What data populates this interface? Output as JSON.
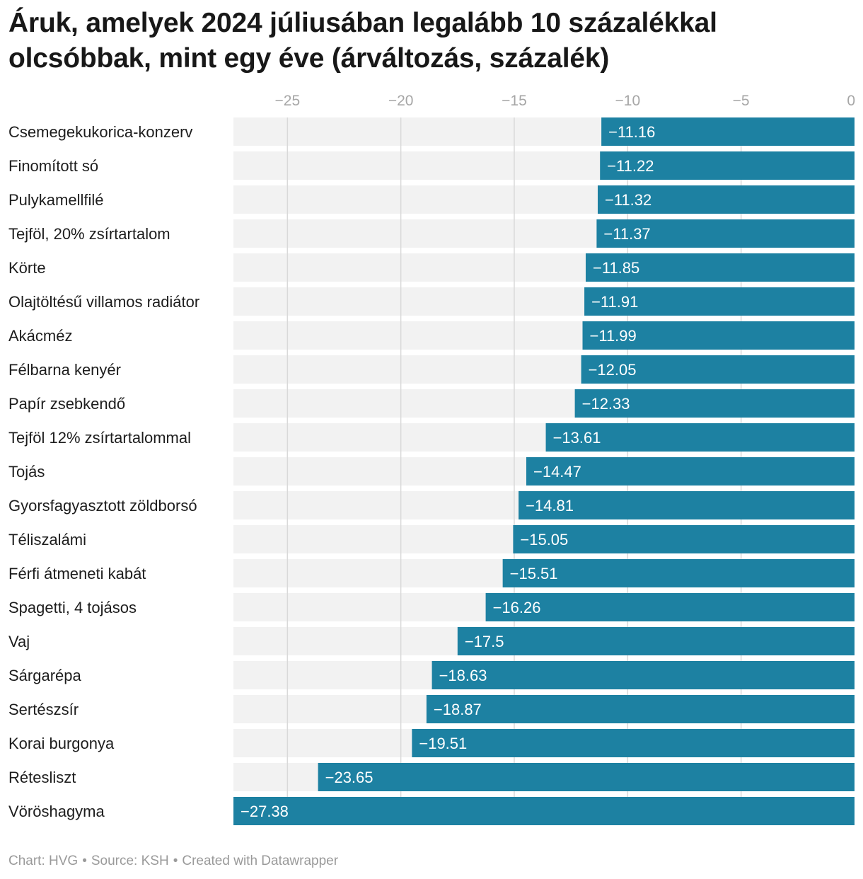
{
  "title": "Áruk, amelyek 2024 júliusában legalább 10 százalékkal olcsóbbak, mint egy éve (árváltozás, százalék)",
  "colors": {
    "bar": "#1d81a2",
    "track": "#f2f2f2",
    "grid": "#d9d9d9",
    "axis_text": "#a6a6a6",
    "label_text": "#1d1d1d",
    "value_text": "#ffffff"
  },
  "chart_data": {
    "type": "bar",
    "orientation": "horizontal",
    "title": "Áruk, amelyek 2024 júliusában legalább 10 százalékkal olcsóbbak, mint egy éve (árváltozás, százalék)",
    "xlabel": "",
    "ylabel": "",
    "xlim": [
      -27.38,
      0
    ],
    "ticks": [
      -25,
      -20,
      -15,
      -10,
      -5,
      0
    ],
    "tick_labels": [
      "−25",
      "−20",
      "−15",
      "−10",
      "−5",
      "0"
    ],
    "grid": true,
    "categories": [
      "Csemegekukorica-konzerv",
      "Finomított só",
      "Pulykamellfilé",
      "Tejföl, 20% zsírtartalom",
      "Körte",
      "Olajtöltésű villamos radiátor",
      "Akácméz",
      "Félbarna kenyér",
      "Papír zsebkendő",
      "Tejföl 12% zsírtartalommal",
      "Tojás",
      "Gyorsfagyasztott zöldborsó",
      "Téliszalámi",
      "Férfi átmeneti kabát",
      "Spagetti, 4 tojásos",
      "Vaj",
      "Sárgarépa",
      "Sertészsír",
      "Korai burgonya",
      "Rétesliszt",
      "Vöröshagyma"
    ],
    "values": [
      -11.16,
      -11.22,
      -11.32,
      -11.37,
      -11.85,
      -11.91,
      -11.99,
      -12.05,
      -12.33,
      -13.61,
      -14.47,
      -14.81,
      -15.05,
      -15.51,
      -16.26,
      -17.5,
      -18.63,
      -18.87,
      -19.51,
      -23.65,
      -27.38
    ],
    "value_labels": [
      "−11.16",
      "−11.22",
      "−11.32",
      "−11.37",
      "−11.85",
      "−11.91",
      "−11.99",
      "−12.05",
      "−12.33",
      "−13.61",
      "−14.47",
      "−14.81",
      "−15.05",
      "−15.51",
      "−16.26",
      "−17.5",
      "−18.63",
      "−18.87",
      "−19.51",
      "−23.65",
      "−27.38"
    ]
  },
  "footer": {
    "chart_credit": "Chart: HVG",
    "source": "Source: KSH",
    "created_with": "Created with Datawrapper",
    "separator": "•"
  }
}
